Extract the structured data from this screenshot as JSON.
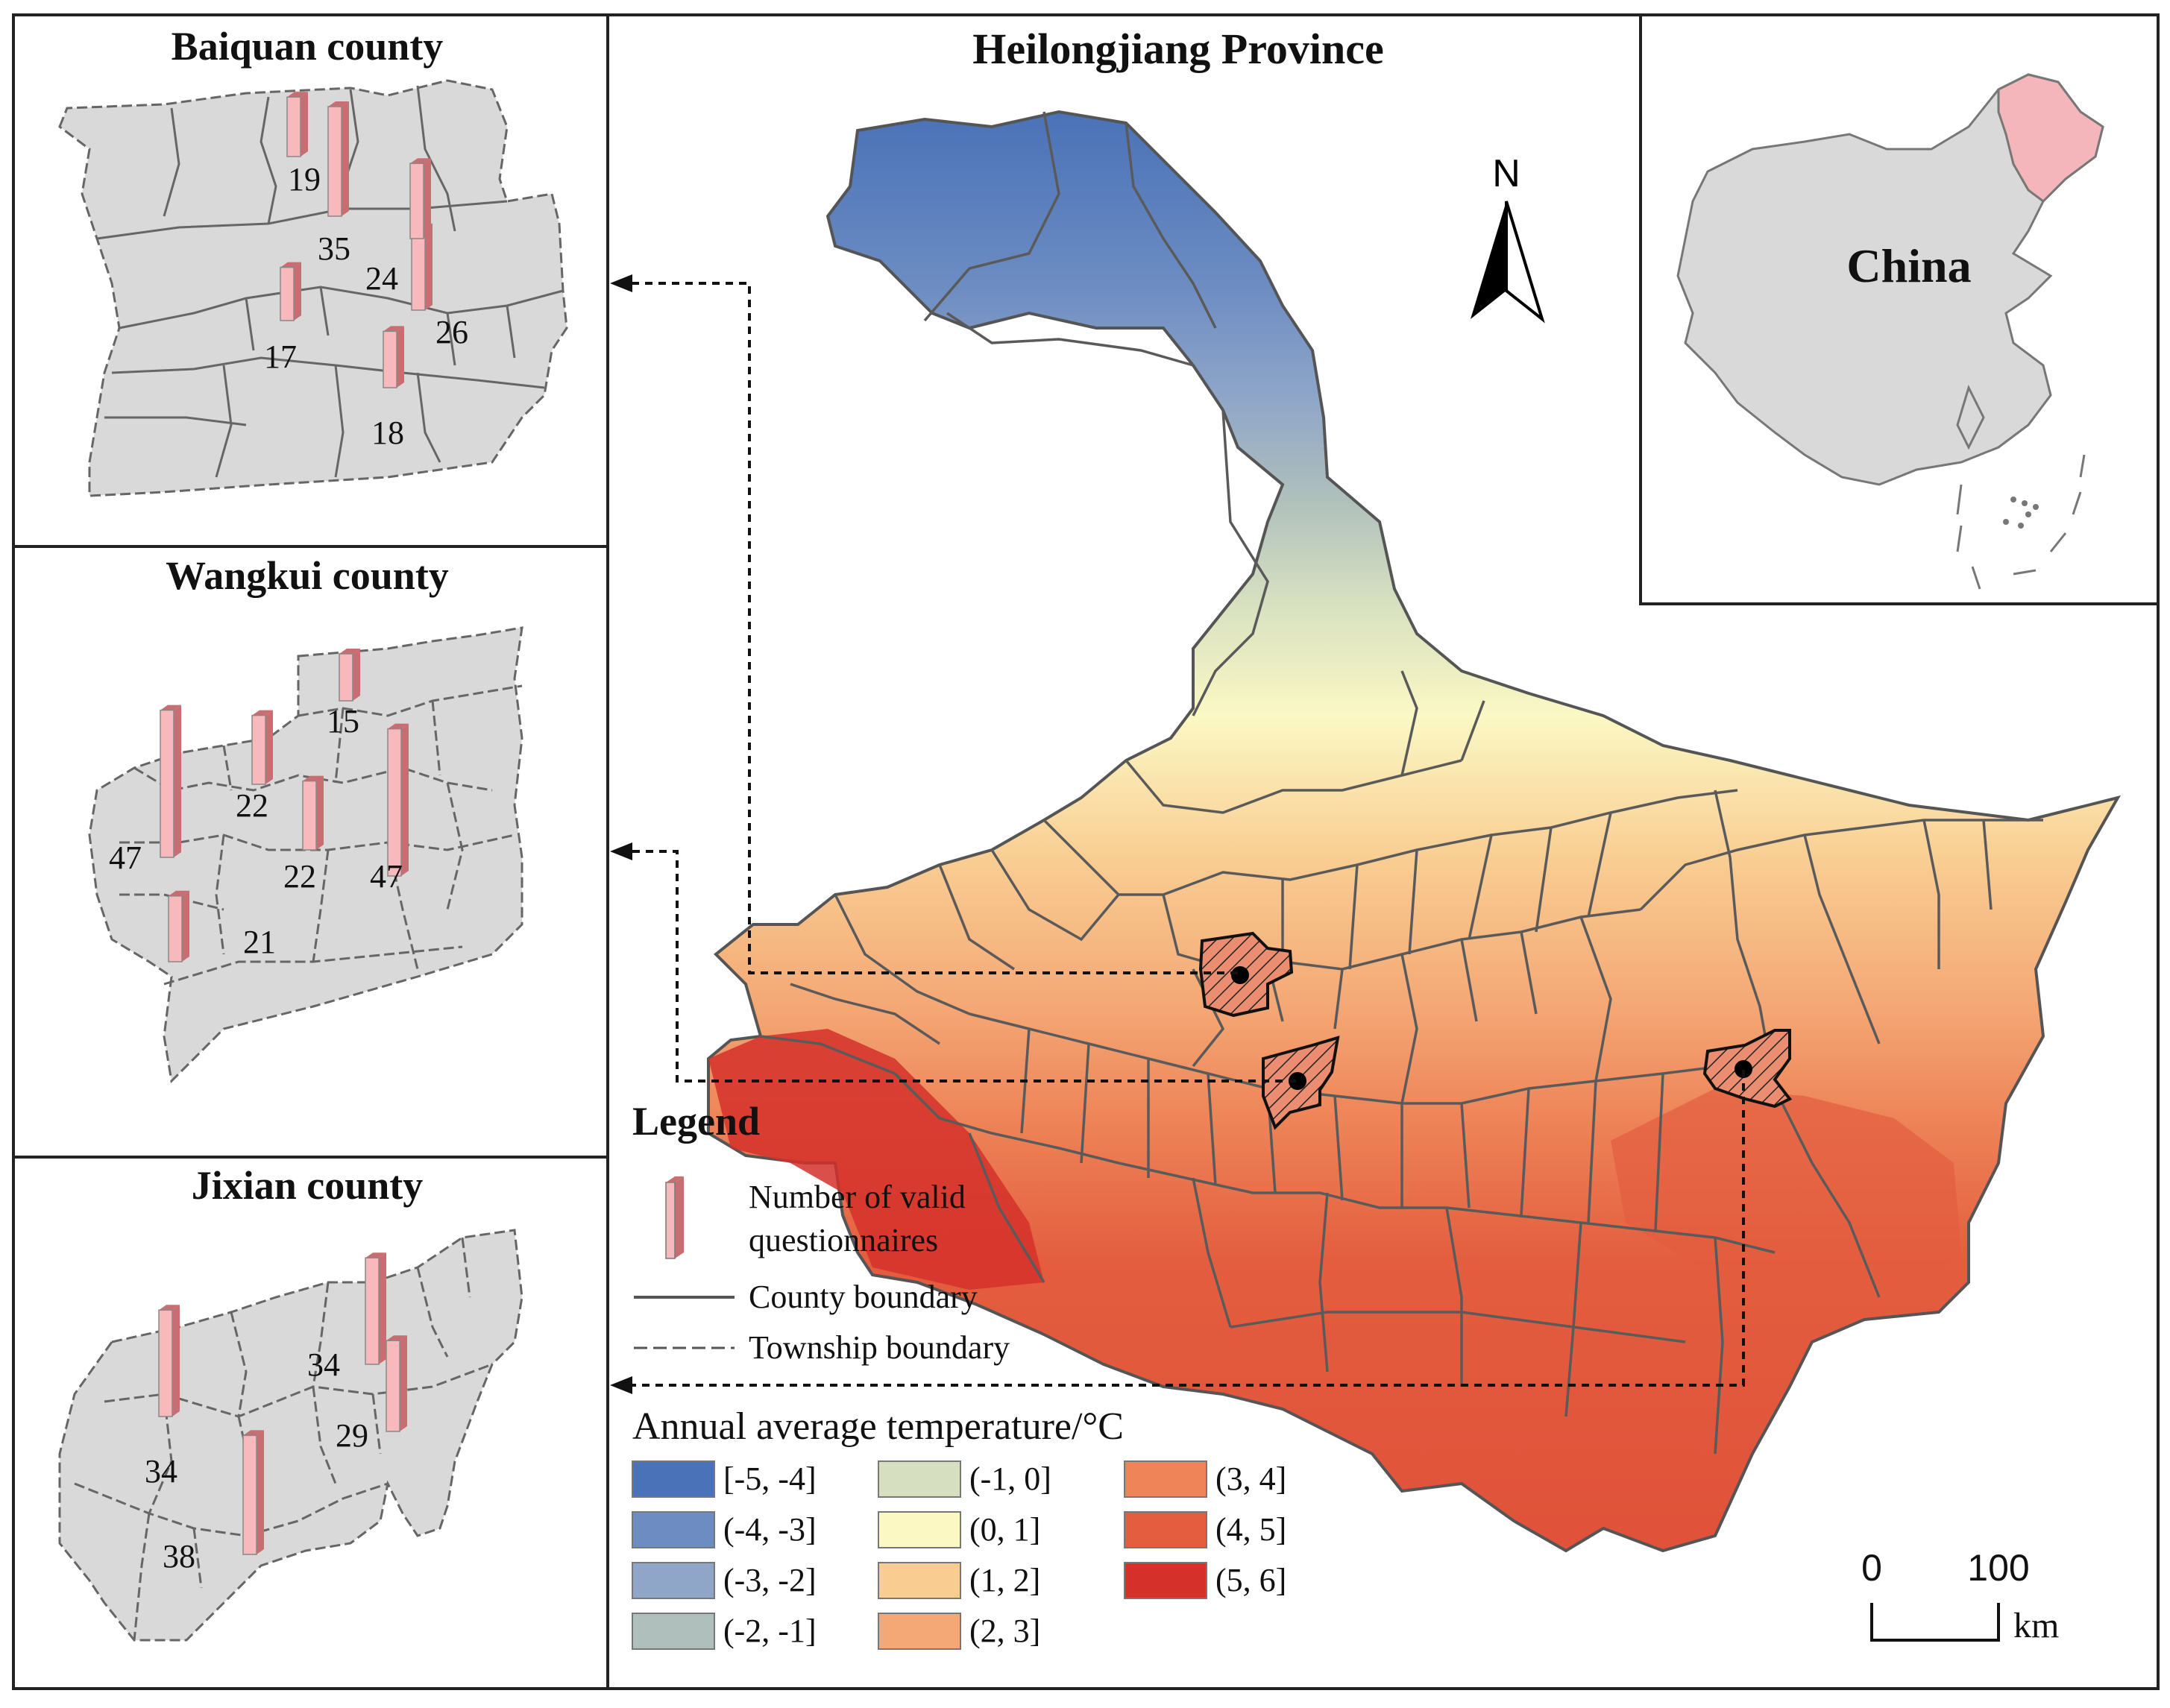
{
  "main_map": {
    "title": "Heilongjiang Province",
    "north_label": "N"
  },
  "inset": {
    "country_label": "China"
  },
  "counties": [
    {
      "title": "Baiquan county",
      "bars": [
        {
          "label": "19",
          "value": 19
        },
        {
          "label": "35",
          "value": 35
        },
        {
          "label": "24",
          "value": 24
        },
        {
          "label": "17",
          "value": 17
        },
        {
          "label": "26",
          "value": 26
        },
        {
          "label": "18",
          "value": 18
        }
      ]
    },
    {
      "title": "Wangkui county",
      "bars": [
        {
          "label": "15",
          "value": 15
        },
        {
          "label": "22",
          "value": 22
        },
        {
          "label": "47",
          "value": 47
        },
        {
          "label": "22",
          "value": 22
        },
        {
          "label": "47",
          "value": 47
        },
        {
          "label": "21",
          "value": 21
        }
      ]
    },
    {
      "title": "Jixian county",
      "bars": [
        {
          "label": "34",
          "value": 34
        },
        {
          "label": "34",
          "value": 34
        },
        {
          "label": "29",
          "value": 29
        },
        {
          "label": "38",
          "value": 38
        }
      ]
    }
  ],
  "legend": {
    "title": "Legend",
    "bar_label_line1": "Number of valid",
    "bar_label_line2": "questionnaires",
    "county_boundary": "County boundary",
    "township_boundary": "Township boundary",
    "temp_title": "Annual average temperature/°C",
    "classes": [
      {
        "label": "[-5, -4]",
        "color": "#4a72b8"
      },
      {
        "label": "(-4, -3]",
        "color": "#6c8cc2"
      },
      {
        "label": "(-3, -2]",
        "color": "#8fa6c8"
      },
      {
        "label": "(-2, -1]",
        "color": "#afc0bc"
      },
      {
        "label": "(-1, 0]",
        "color": "#d6e0c0"
      },
      {
        "label": "(0, 1]",
        "color": "#fbf8c4"
      },
      {
        "label": "(1, 2]",
        "color": "#f9cd92"
      },
      {
        "label": "(2, 3]",
        "color": "#f4a875"
      },
      {
        "label": "(3, 4]",
        "color": "#ee8458"
      },
      {
        "label": "(4, 5]",
        "color": "#e35d3e"
      },
      {
        "label": "(5, 6]",
        "color": "#d5302a"
      }
    ]
  },
  "scale_bar": {
    "label_start": "0",
    "label_end": "100",
    "unit": "km"
  },
  "colors": {
    "bar_face": "#f7b9bb",
    "bar_side": "#c86d72",
    "county_fill": "#d9d9d9",
    "highlight": "#f4b6ba",
    "border": "#2b2b2b"
  }
}
